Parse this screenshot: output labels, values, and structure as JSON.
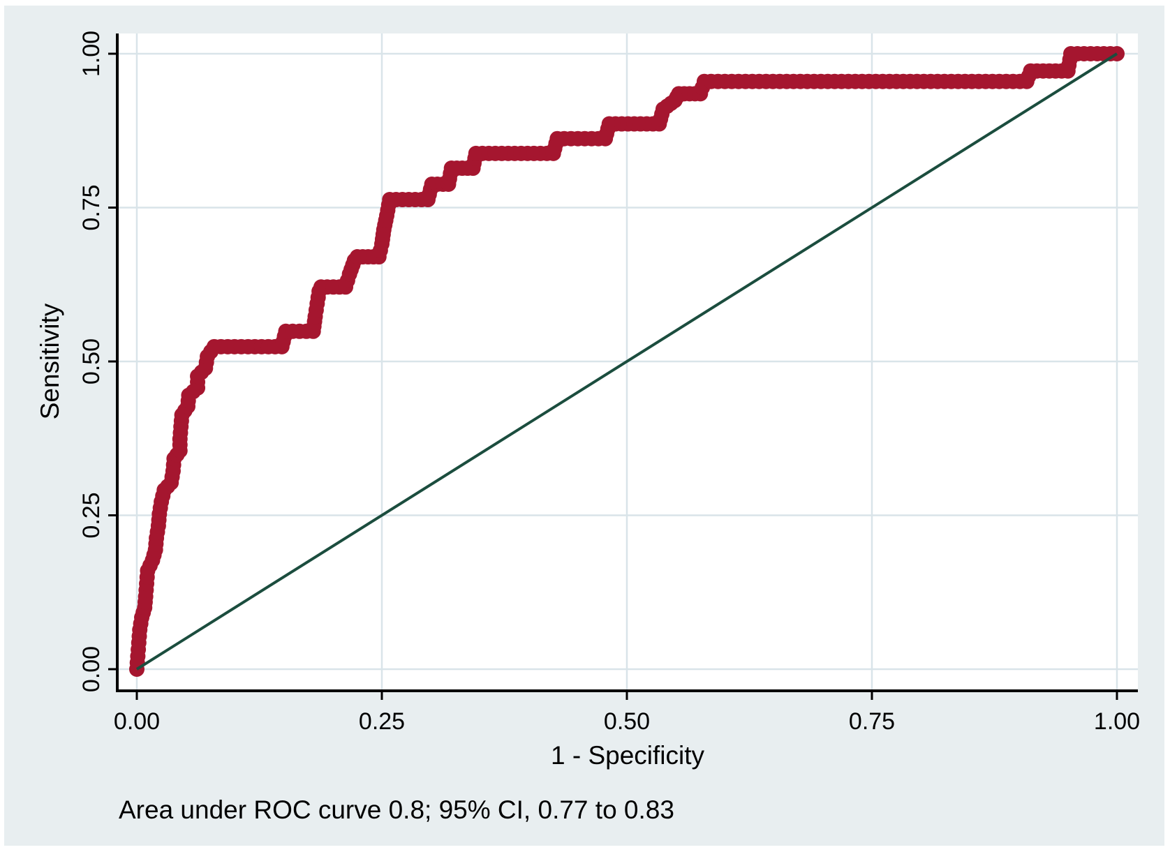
{
  "figure": {
    "caption": "Area under ROC curve 0.8; 95% CI, 0.77 to 0.83"
  },
  "chart_data": {
    "type": "scatter",
    "subtype": "roc-curve-step-dots",
    "title": "",
    "xlabel": "1 - Specificity",
    "ylabel": "Sensitivity",
    "xlim": [
      0,
      1
    ],
    "ylim": [
      0,
      1
    ],
    "grid": true,
    "legend_position": "none",
    "x_ticks": [
      0,
      0.25,
      0.5,
      0.75,
      1.0
    ],
    "x_tick_labels": [
      "0.00",
      "0.25",
      "0.50",
      "0.75",
      "1.00"
    ],
    "y_ticks": [
      0,
      0.25,
      0.5,
      0.75,
      1.0
    ],
    "y_tick_labels": [
      "0.00",
      "0.25",
      "0.50",
      "0.75",
      "1.00"
    ],
    "annotation": "Area under ROC curve 0.8; 95% CI, 0.77 to 0.83",
    "auc": 0.8,
    "ci_95": [
      0.77,
      0.83
    ],
    "style": {
      "panel_bg": "#e8eef0",
      "plot_bg": "#ffffff",
      "grid_color": "#d9e4e9",
      "axis_color": "#000000",
      "text_color": "#000000"
    },
    "series": [
      {
        "name": "ROC curve",
        "type": "dot-step",
        "color": "#a5162f",
        "marker_radius": 11,
        "dot_spacing_px": 10,
        "points": [
          [
            0.0,
            0.0
          ],
          [
            0.001,
            0.021
          ],
          [
            0.002,
            0.043
          ],
          [
            0.003,
            0.064
          ],
          [
            0.005,
            0.084
          ],
          [
            0.008,
            0.1
          ],
          [
            0.009,
            0.118
          ],
          [
            0.01,
            0.139
          ],
          [
            0.011,
            0.16
          ],
          [
            0.016,
            0.177
          ],
          [
            0.019,
            0.194
          ],
          [
            0.02,
            0.213
          ],
          [
            0.022,
            0.233
          ],
          [
            0.023,
            0.252
          ],
          [
            0.025,
            0.272
          ],
          [
            0.028,
            0.291
          ],
          [
            0.035,
            0.303
          ],
          [
            0.037,
            0.322
          ],
          [
            0.038,
            0.342
          ],
          [
            0.044,
            0.355
          ],
          [
            0.044,
            0.374
          ],
          [
            0.045,
            0.394
          ],
          [
            0.046,
            0.413
          ],
          [
            0.052,
            0.427
          ],
          [
            0.053,
            0.445
          ],
          [
            0.062,
            0.457
          ],
          [
            0.062,
            0.476
          ],
          [
            0.07,
            0.489
          ],
          [
            0.072,
            0.508
          ],
          [
            0.079,
            0.524
          ],
          [
            0.148,
            0.524
          ],
          [
            0.152,
            0.549
          ],
          [
            0.18,
            0.549
          ],
          [
            0.182,
            0.573
          ],
          [
            0.184,
            0.594
          ],
          [
            0.186,
            0.614
          ],
          [
            0.188,
            0.621
          ],
          [
            0.213,
            0.621
          ],
          [
            0.217,
            0.642
          ],
          [
            0.222,
            0.664
          ],
          [
            0.225,
            0.67
          ],
          [
            0.247,
            0.67
          ],
          [
            0.25,
            0.691
          ],
          [
            0.252,
            0.714
          ],
          [
            0.255,
            0.737
          ],
          [
            0.258,
            0.763
          ],
          [
            0.297,
            0.763
          ],
          [
            0.301,
            0.788
          ],
          [
            0.318,
            0.788
          ],
          [
            0.321,
            0.814
          ],
          [
            0.343,
            0.814
          ],
          [
            0.346,
            0.838
          ],
          [
            0.425,
            0.838
          ],
          [
            0.429,
            0.862
          ],
          [
            0.478,
            0.862
          ],
          [
            0.482,
            0.886
          ],
          [
            0.533,
            0.886
          ],
          [
            0.537,
            0.91
          ],
          [
            0.549,
            0.924
          ],
          [
            0.553,
            0.935
          ],
          [
            0.575,
            0.935
          ],
          [
            0.579,
            0.955
          ],
          [
            0.908,
            0.955
          ],
          [
            0.912,
            0.972
          ],
          [
            0.95,
            0.972
          ],
          [
            0.953,
            1.0
          ],
          [
            1.0,
            1.0
          ]
        ]
      },
      {
        "name": "Reference line",
        "type": "line",
        "color": "#1b4d3e",
        "line_width": 4,
        "points": [
          [
            0,
            0
          ],
          [
            1,
            1
          ]
        ]
      }
    ]
  }
}
